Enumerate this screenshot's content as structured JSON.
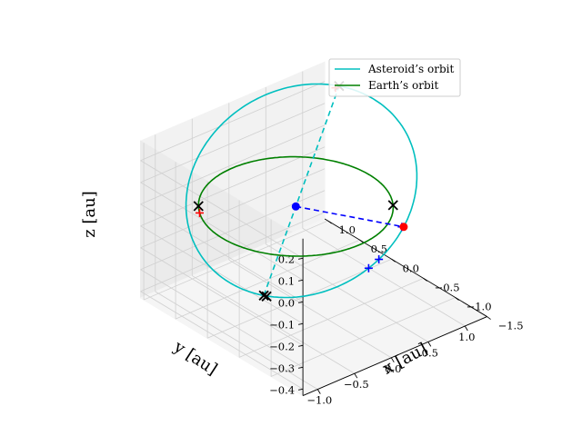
{
  "chart_data": {
    "type": "3d-line",
    "grid": true,
    "legend_position": "top-right",
    "axes": {
      "x": {
        "label": "x [au]",
        "range": [
          -1.2,
          1.3
        ],
        "ticks": [
          -1.0,
          -0.5,
          0.0,
          0.5,
          1.0
        ],
        "tick_labels": [
          "−1.0",
          "−0.5",
          "0.0",
          "0.5",
          "1.0"
        ]
      },
      "y": {
        "label": "y [au]",
        "range": [
          -1.5,
          1.05
        ],
        "ticks": [
          -1.5,
          -1.0,
          -0.5,
          0.0,
          0.5,
          1.0
        ],
        "tick_labels": [
          "−1.5",
          "−1.0",
          "−0.5",
          "0.0",
          "0.5",
          "1.0"
        ]
      },
      "z": {
        "label": "z [au]",
        "range": [
          -0.43,
          0.29
        ],
        "ticks": [
          -0.4,
          -0.3,
          -0.2,
          -0.1,
          0.0,
          0.1,
          0.2
        ],
        "tick_labels": [
          "−0.4",
          "−0.3",
          "−0.2",
          "−0.1",
          "0.0",
          "0.1",
          "0.2"
        ]
      }
    },
    "series": [
      {
        "name": "Asteroid’s orbit",
        "color": "#00bfbf",
        "orbit": {
          "a": 1.2,
          "e": 0.15,
          "inclination_deg": 11,
          "node_longitude_deg": 300,
          "perihelion_arg_deg": 270
        }
      },
      {
        "name": "Earth’s orbit",
        "color": "#008000",
        "orbit": {
          "a": 1.0,
          "e": 0.0,
          "inclination_deg": 0,
          "node_longitude_deg": 0,
          "perihelion_arg_deg": 0
        }
      }
    ],
    "points": [
      {
        "label": "Sun",
        "marker": "dot",
        "color": "#0000ff",
        "xyz": [
          0,
          0,
          0
        ]
      },
      {
        "label": "node",
        "marker": "dot",
        "color": "#ff0000",
        "xyz": [
          0.5,
          0.866,
          0
        ]
      }
    ],
    "marker_colors": {
      "x": "#000000",
      "plus_red": "#ff0000",
      "plus_blue": "#0000ff"
    }
  }
}
